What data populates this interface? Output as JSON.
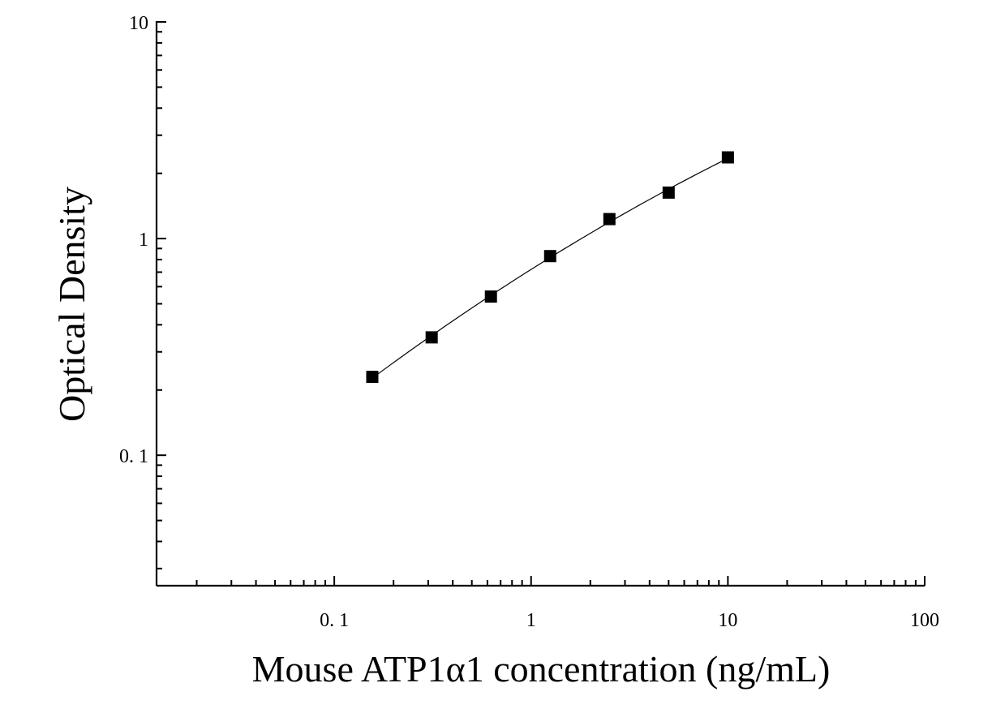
{
  "chart_data": {
    "type": "scatter",
    "title": "",
    "xlabel": "Mouse ATP1α1 concentration (ng/mL)",
    "ylabel": "Optical Density",
    "x_scale": "log",
    "y_scale": "log",
    "xlim": [
      0.0125,
      100
    ],
    "ylim": [
      0.025,
      10
    ],
    "x_ticks": [
      {
        "value": 0.1,
        "label": "0. 1"
      },
      {
        "value": 1,
        "label": "1"
      },
      {
        "value": 10,
        "label": "10"
      },
      {
        "value": 100,
        "label": "100"
      }
    ],
    "y_ticks": [
      {
        "value": 0.1,
        "label": "0. 1"
      },
      {
        "value": 1,
        "label": "1"
      },
      {
        "value": 10,
        "label": "10"
      }
    ],
    "grid": false,
    "legend": "none",
    "series": [
      {
        "x": [
          0.156,
          0.3125,
          0.625,
          1.25,
          2.5,
          5,
          10
        ],
        "y": [
          0.23,
          0.35,
          0.54,
          0.83,
          1.23,
          1.63,
          2.37
        ],
        "marker": "square",
        "fit_line": true
      }
    ],
    "colors": {
      "marker": "#000000",
      "line": "#000000",
      "axis": "#000000"
    }
  }
}
